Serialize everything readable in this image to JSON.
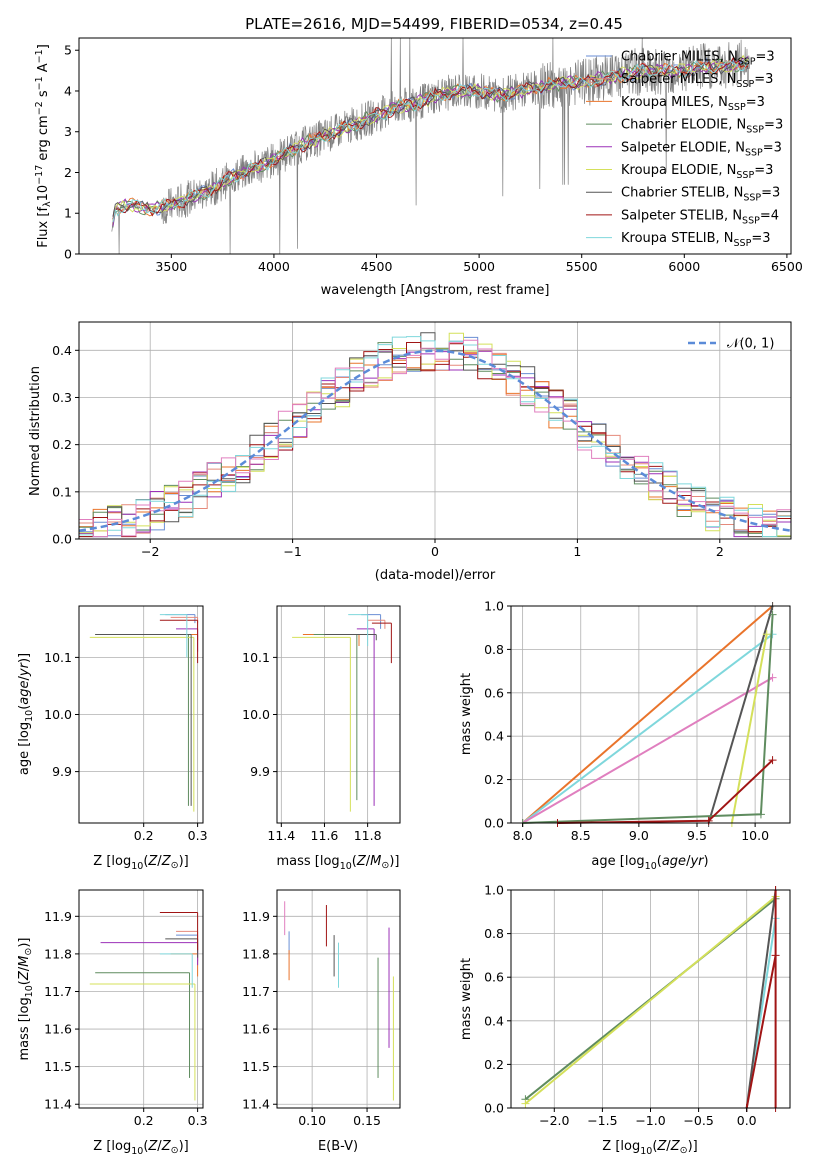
{
  "figure": {
    "title": "PLATE=2616, MJD=54499, FIBERID=0534, z=0.45"
  },
  "colors": {
    "Chabrier MILES": "#6a8ed4",
    "Salpeter MILES": "#e58a7b",
    "Kroupa MILES": "#e9742b",
    "Chabrier ELODIE": "#5f8c5f",
    "Salpeter ELODIE": "#9b30b8",
    "Kroupa ELODIE": "#d4e05a",
    "Chabrier STELIB": "#555555",
    "Salpeter STELIB": "#a01515",
    "Kroupa STELIB": "#7fd7dc",
    "Pink model": "#e07fbf",
    "Data": "#808080"
  },
  "chart_data": [
    {
      "type": "line",
      "id": "spectrum",
      "xlabel": "wavelength [Angstrom, rest frame]",
      "ylabel": "Flux [f",
      "xlim": [
        3050,
        6520
      ],
      "ylim": [
        0,
        5.3
      ],
      "xticks": [
        "3500",
        "4000",
        "4500",
        "5000",
        "5500",
        "6000",
        "6500"
      ],
      "yticks": [
        "0",
        "1",
        "2",
        "3",
        "4",
        "5"
      ],
      "legend": {
        "position": "top-right",
        "entries": [
          {
            "model": "Chabrier MILES",
            "n": "3"
          },
          {
            "model": "Salpeter MILES",
            "n": "3"
          },
          {
            "model": "Kroupa MILES",
            "n": "3"
          },
          {
            "model": "Chabrier ELODIE",
            "n": "3"
          },
          {
            "model": "Salpeter ELODIE",
            "n": "3"
          },
          {
            "model": "Kroupa ELODIE",
            "n": "3"
          },
          {
            "model": "Chabrier STELIB",
            "n": "3"
          },
          {
            "model": "Salpeter STELIB",
            "n": "4"
          },
          {
            "model": "Kroupa STELIB",
            "n": "3"
          }
        ]
      },
      "continuum": {
        "x": [
          3200,
          3220,
          3300,
          3400,
          3500,
          3600,
          3700,
          3800,
          3900,
          4000,
          4100,
          4200,
          4300,
          4400,
          4500,
          4600,
          4700,
          4800,
          4900,
          5000,
          5100,
          5200,
          5300,
          5400,
          5500,
          5600,
          5700,
          5800,
          5900,
          6000,
          6100,
          6200,
          6300
        ],
        "y": [
          0,
          1.1,
          1.2,
          1.1,
          1.2,
          1.4,
          1.6,
          1.9,
          2.1,
          2.3,
          2.6,
          2.8,
          3.0,
          3.2,
          3.4,
          3.6,
          3.7,
          3.9,
          4.0,
          4.0,
          3.9,
          4.0,
          4.1,
          4.2,
          4.2,
          4.3,
          4.4,
          4.5,
          4.5,
          4.5,
          4.6,
          4.6,
          4.7
        ]
      }
    },
    {
      "type": "histogram",
      "id": "residuals",
      "xlabel": "(data-model)/error",
      "ylabel": "Normed distribution",
      "xlim": [
        -2.5,
        2.5
      ],
      "ylim": [
        0,
        0.46
      ],
      "xticks": [
        "−2",
        "−1",
        "0",
        "1",
        "2"
      ],
      "yticks": [
        "0.0",
        "0.1",
        "0.2",
        "0.3",
        "0.4"
      ],
      "bins": 50,
      "legend": {
        "label": "𝒩(0, 1)",
        "position": "top-right"
      }
    },
    {
      "type": "scatter",
      "id": "age-Z",
      "xlabel": "Z [log",
      "ylabel": "age  [log",
      "xlim": [
        0.08,
        0.31
      ],
      "ylim": [
        9.81,
        10.19
      ],
      "xticks": [
        "0.2",
        "0.3"
      ],
      "yticks": [
        "9.9",
        "10.0",
        "10.1"
      ],
      "points": [
        {
          "model": "Chabrier MILES",
          "x": 0.295,
          "y": 10.175,
          "xlo": 0.24,
          "ylo": 10.16
        },
        {
          "model": "Salpeter MILES",
          "x": 0.3,
          "y": 10.17,
          "xlo": 0.25,
          "ylo": 10.16
        },
        {
          "model": "Kroupa MILES",
          "x": 0.3,
          "y": 10.14,
          "xlo": 0.12,
          "ylo": 10.13
        },
        {
          "model": "Chabrier ELODIE",
          "x": 0.283,
          "y": 10.14,
          "xlo": 0.11,
          "ylo": 9.84
        },
        {
          "model": "Salpeter ELODIE",
          "x": 0.3,
          "y": 10.15,
          "xlo": 0.26,
          "ylo": 10.11
        },
        {
          "model": "Kroupa ELODIE",
          "x": 0.293,
          "y": 10.135,
          "xlo": 0.1,
          "ylo": 9.83
        },
        {
          "model": "Chabrier STELIB",
          "x": 0.288,
          "y": 10.14,
          "xlo": 0.11,
          "ylo": 9.84
        },
        {
          "model": "Salpeter STELIB",
          "x": 0.3,
          "y": 10.165,
          "xlo": 0.23,
          "ylo": 10.09
        },
        {
          "model": "Kroupa STELIB",
          "x": 0.28,
          "y": 10.175,
          "xlo": 0.23,
          "ylo": 10.1
        }
      ]
    },
    {
      "type": "scatter",
      "id": "age-mass",
      "xlabel": "mass [log",
      "ylabel": "",
      "xlim": [
        11.38,
        11.95
      ],
      "ylim": [
        9.81,
        10.19
      ],
      "xticks": [
        "11.4",
        "11.6",
        "11.8"
      ],
      "yticks": [
        "9.9",
        "10.0",
        "10.1"
      ],
      "points": [
        {
          "model": "Chabrier MILES",
          "x": 11.86,
          "y": 10.175,
          "xlo": 11.77,
          "ylo": 10.15
        },
        {
          "model": "Salpeter MILES",
          "x": 11.88,
          "y": 10.165,
          "xlo": 11.8,
          "ylo": 10.15
        },
        {
          "model": "Kroupa MILES",
          "x": 11.76,
          "y": 10.14,
          "xlo": 11.5,
          "ylo": 10.12
        },
        {
          "model": "Chabrier ELODIE",
          "x": 11.75,
          "y": 10.14,
          "xlo": 11.55,
          "ylo": 9.85
        },
        {
          "model": "Salpeter ELODIE",
          "x": 11.83,
          "y": 10.15,
          "xlo": 11.75,
          "ylo": 9.84
        },
        {
          "model": "Kroupa ELODIE",
          "x": 11.72,
          "y": 10.135,
          "xlo": 11.45,
          "ylo": 9.83
        },
        {
          "model": "Chabrier STELIB",
          "x": 11.84,
          "y": 10.14,
          "xlo": 11.6,
          "ylo": 10.13
        },
        {
          "model": "Salpeter STELIB",
          "x": 11.91,
          "y": 10.16,
          "xlo": 11.82,
          "ylo": 10.09
        },
        {
          "model": "Kroupa STELIB",
          "x": 11.8,
          "y": 10.175,
          "xlo": 11.71,
          "ylo": 10.12
        }
      ]
    },
    {
      "type": "line",
      "id": "mw-age",
      "xlabel": "age  [log",
      "ylabel": "mass weight",
      "xlim": [
        7.9,
        10.3
      ],
      "ylim": [
        0,
        1
      ],
      "xticks": [
        "8.0",
        "8.5",
        "9.0",
        "9.5",
        "10.0"
      ],
      "yticks": [
        "0.0",
        "0.2",
        "0.4",
        "0.6",
        "0.8",
        "1.0"
      ],
      "series": [
        {
          "model": "Kroupa MILES",
          "x": [
            8.0,
            10.15
          ],
          "y": [
            0.0,
            1.0
          ]
        },
        {
          "model": "Kroupa STELIB",
          "x": [
            8.0,
            10.15
          ],
          "y": [
            0.0,
            0.87
          ]
        },
        {
          "model": "Pink model",
          "x": [
            8.0,
            10.15
          ],
          "y": [
            0.0,
            0.67
          ]
        },
        {
          "model": "Chabrier STELIB",
          "x": [
            9.6,
            10.15
          ],
          "y": [
            0.0,
            1.0
          ]
        },
        {
          "model": "Kroupa ELODIE",
          "x": [
            9.8,
            10.1
          ],
          "y": [
            0.0,
            0.87
          ]
        },
        {
          "model": "Chabrier ELODIE",
          "x": [
            8.0,
            10.05,
            10.15
          ],
          "y": [
            0.0,
            0.04,
            0.96
          ]
        },
        {
          "model": "Salpeter STELIB",
          "x": [
            8.3,
            9.6,
            10.15
          ],
          "y": [
            0.0,
            0.01,
            0.29
          ]
        }
      ]
    },
    {
      "type": "scatter",
      "id": "mass-Z",
      "xlabel": "Z [log",
      "ylabel": "mass [log",
      "xlim": [
        0.08,
        0.31
      ],
      "ylim": [
        11.39,
        11.97
      ],
      "xticks": [
        "0.2",
        "0.3"
      ],
      "yticks": [
        "11.4",
        "11.5",
        "11.6",
        "11.7",
        "11.8",
        "11.9"
      ],
      "points": [
        {
          "model": "Chabrier MILES",
          "x": 0.3,
          "y": 11.85,
          "xlo": 0.26,
          "ylo": 11.78
        },
        {
          "model": "Salpeter MILES",
          "x": 0.3,
          "y": 11.86,
          "xlo": 0.26,
          "ylo": 11.8
        },
        {
          "model": "Kroupa MILES",
          "x": 0.3,
          "y": 11.8,
          "xlo": 0.25,
          "ylo": 11.74
        },
        {
          "model": "Chabrier ELODIE",
          "x": 0.285,
          "y": 11.75,
          "xlo": 0.11,
          "ylo": 11.47
        },
        {
          "model": "Salpeter ELODIE",
          "x": 0.3,
          "y": 11.83,
          "xlo": 0.12,
          "ylo": 11.77
        },
        {
          "model": "Kroupa ELODIE",
          "x": 0.295,
          "y": 11.72,
          "xlo": 0.1,
          "ylo": 11.41
        },
        {
          "model": "Chabrier STELIB",
          "x": 0.3,
          "y": 11.84,
          "xlo": 0.24,
          "ylo": 11.79
        },
        {
          "model": "Salpeter STELIB",
          "x": 0.3,
          "y": 11.91,
          "xlo": 0.23,
          "ylo": 11.81
        },
        {
          "model": "Kroupa STELIB",
          "x": 0.29,
          "y": 11.8,
          "xlo": 0.23,
          "ylo": 11.71
        }
      ]
    },
    {
      "type": "scatter",
      "id": "mass-ebv",
      "xlabel": "E(B-V)",
      "ylabel": "",
      "xlim": [
        0.068,
        0.18
      ],
      "ylim": [
        11.39,
        11.97
      ],
      "xticks": [
        "0.10",
        "0.15"
      ],
      "yticks": [
        "11.4",
        "11.5",
        "11.6",
        "11.7",
        "11.8",
        "11.9"
      ],
      "points": [
        {
          "model": "Pink model",
          "x": 0.075,
          "y": 11.94,
          "xlo": 0.075,
          "ylo": 11.85
        },
        {
          "model": "Chabrier MILES",
          "x": 0.079,
          "y": 11.86,
          "xlo": 0.079,
          "ylo": 11.8
        },
        {
          "model": "Kroupa MILES",
          "x": 0.079,
          "y": 11.81,
          "xlo": 0.079,
          "ylo": 11.73
        },
        {
          "model": "Salpeter STELIB",
          "x": 0.113,
          "y": 11.93,
          "xlo": 0.113,
          "ylo": 11.82
        },
        {
          "model": "Chabrier STELIB",
          "x": 0.12,
          "y": 11.85,
          "xlo": 0.12,
          "ylo": 11.74
        },
        {
          "model": "Kroupa STELIB",
          "x": 0.124,
          "y": 11.83,
          "xlo": 0.124,
          "ylo": 11.71
        },
        {
          "model": "Chabrier ELODIE",
          "x": 0.16,
          "y": 11.79,
          "xlo": 0.16,
          "ylo": 11.47
        },
        {
          "model": "Salpeter ELODIE",
          "x": 0.17,
          "y": 11.87,
          "xlo": 0.17,
          "ylo": 11.55
        },
        {
          "model": "Kroupa ELODIE",
          "x": 0.174,
          "y": 11.74,
          "xlo": 0.174,
          "ylo": 11.41
        }
      ]
    },
    {
      "type": "line",
      "id": "mw-Z",
      "xlabel": "Z [log",
      "ylabel": "mass weight",
      "xlim": [
        -2.45,
        0.45
      ],
      "ylim": [
        0,
        1
      ],
      "xticks": [
        "−2.0",
        "−1.5",
        "−1.0",
        "−0.5",
        "0.0"
      ],
      "yticks": [
        "0.0",
        "0.2",
        "0.4",
        "0.6",
        "0.8",
        "1.0"
      ],
      "series": [
        {
          "model": "Chabrier ELODIE",
          "x": [
            -2.3,
            0.3
          ],
          "y": [
            0.04,
            0.96
          ]
        },
        {
          "model": "Kroupa ELODIE",
          "x": [
            -2.3,
            0.3
          ],
          "y": [
            0.02,
            0.97
          ]
        },
        {
          "model": "Kroupa STELIB",
          "x": [
            0.0,
            0.3
          ],
          "y": [
            0.0,
            0.87
          ]
        },
        {
          "model": "Chabrier STELIB",
          "x": [
            0.0,
            0.3
          ],
          "y": [
            0.0,
            1.0
          ]
        },
        {
          "model": "Salpeter STELIB",
          "x": [
            0.0,
            0.3
          ],
          "y": [
            0.0,
            0.7
          ]
        },
        {
          "model": "Salpeter STELIB",
          "x": [
            0.3,
            0.3
          ],
          "y": [
            0.0,
            1.0
          ]
        }
      ]
    }
  ]
}
